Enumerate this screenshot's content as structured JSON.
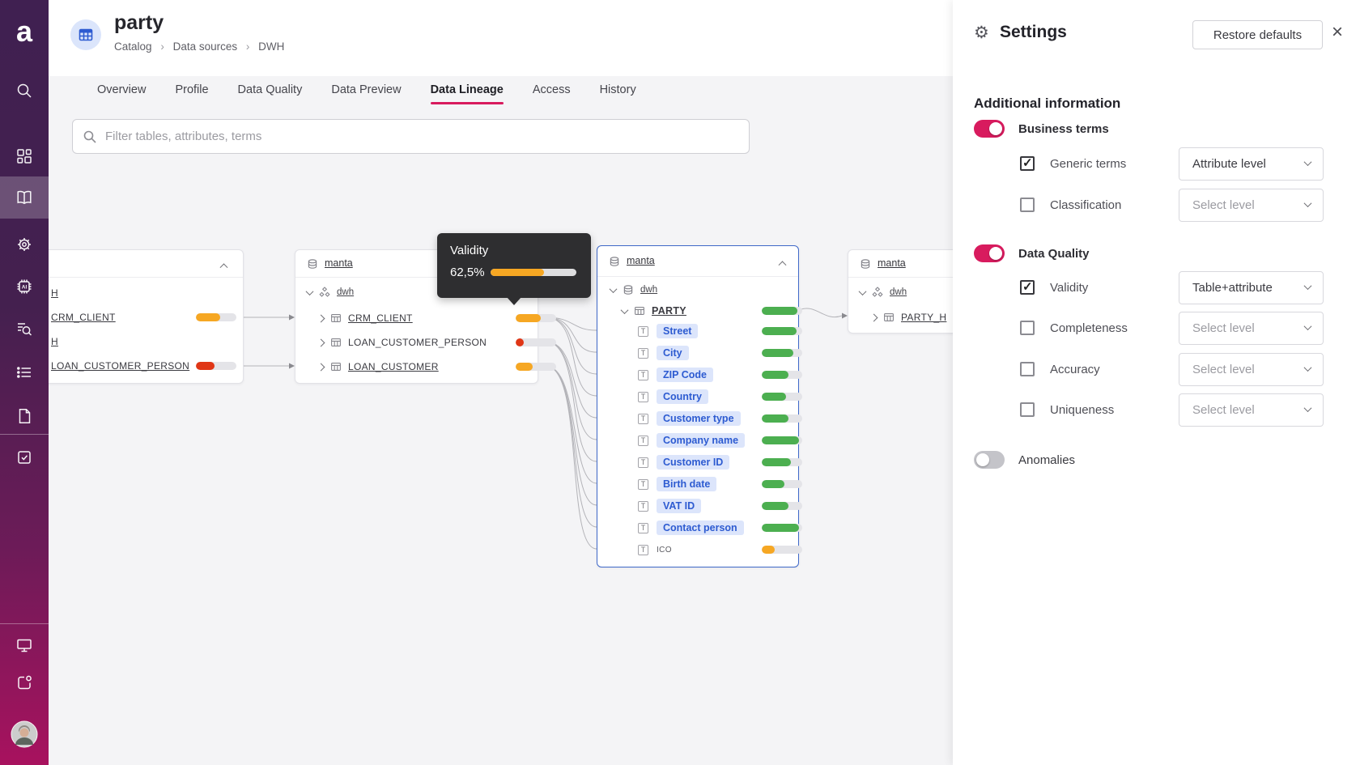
{
  "colors": {
    "pink": "#d81b5e",
    "blue": "#2d5bd1",
    "green": "#4caf50",
    "orange": "#f6a723",
    "red": "#e03616",
    "track": "#e4e4e8",
    "selected_node_border": "#3f68c8",
    "sidebar_top": "#402051",
    "sidebar_bottom": "#a8125e"
  },
  "icons": {
    "gear": "⚙",
    "close": "×",
    "crumb_sep": "›",
    "attribute_type": "T"
  },
  "sidebar": {
    "items": [
      "search-icon",
      "dashboard-icon",
      "catalog-book-icon",
      "gear-icon",
      "ai-chip-icon",
      "data-discovery-icon",
      "list-icon",
      "document-icon",
      "tasks-icon",
      "desktop-icon",
      "release-icon",
      "user-avatar"
    ],
    "active_item": "catalog-book-icon"
  },
  "header": {
    "title": "party",
    "breadcrumb": {
      "items": [
        "Catalog",
        "Data sources",
        "DWH"
      ]
    }
  },
  "tabs": {
    "items": [
      "Overview",
      "Profile",
      "Data Quality",
      "Data Preview",
      "Data Lineage",
      "Access",
      "History"
    ],
    "active": "Data Lineage"
  },
  "filter": {
    "placeholder": "Filter tables, attributes, terms"
  },
  "lineage": {
    "tooltip": {
      "title": "Validity",
      "value": "62,5%",
      "bar": {
        "pct": 62.5,
        "color": "orange"
      }
    },
    "left_node": {
      "rows": [
        {
          "label": "H"
        },
        {
          "label": "CRM_CLIENT",
          "bar": {
            "pct": 60,
            "color": "orange"
          }
        },
        {
          "label": "H"
        },
        {
          "label": "LOAN_CUSTOMER_PERSON",
          "bar": {
            "pct": 45,
            "color": "red"
          }
        }
      ]
    },
    "middle_node": {
      "source": "manta",
      "schema": "dwh",
      "tables": [
        {
          "label": "CRM_CLIENT",
          "bar": {
            "pct": 62.5,
            "color": "orange"
          }
        },
        {
          "label": "LOAN_CUSTOMER_PERSON",
          "bar": {
            "pct": 20,
            "color": "red"
          }
        },
        {
          "label": "LOAN_CUSTOMER",
          "bar": {
            "pct": 42,
            "color": "orange"
          }
        }
      ]
    },
    "party_node": {
      "source": "manta",
      "schema": "dwh",
      "table": {
        "label": "PARTY",
        "bar": {
          "pct": 88,
          "color": "green"
        }
      },
      "attributes": [
        {
          "label": "Street",
          "term": true,
          "bar": {
            "pct": 85,
            "color": "green"
          }
        },
        {
          "label": "City",
          "term": true,
          "bar": {
            "pct": 78,
            "color": "green"
          }
        },
        {
          "label": "ZIP Code",
          "term": true,
          "bar": {
            "pct": 65,
            "color": "green"
          }
        },
        {
          "label": "Country",
          "term": true,
          "bar": {
            "pct": 60,
            "color": "green"
          }
        },
        {
          "label": "Customer type",
          "term": true,
          "bar": {
            "pct": 66,
            "color": "green"
          }
        },
        {
          "label": "Company name",
          "term": true,
          "bar": {
            "pct": 92,
            "color": "green"
          }
        },
        {
          "label": "Customer ID",
          "term": true,
          "bar": {
            "pct": 72,
            "color": "green"
          }
        },
        {
          "label": "Birth date",
          "term": true,
          "bar": {
            "pct": 55,
            "color": "green"
          }
        },
        {
          "label": "VAT ID",
          "term": true,
          "bar": {
            "pct": 66,
            "color": "green"
          }
        },
        {
          "label": "Contact person",
          "term": true,
          "bar": {
            "pct": 92,
            "color": "green"
          }
        },
        {
          "label": "ICO",
          "term": false,
          "bar": {
            "pct": 32,
            "color": "orange"
          }
        }
      ]
    },
    "right_node": {
      "source": "manta",
      "schema": "dwh",
      "tables": [
        {
          "label": "PARTY_H"
        }
      ]
    }
  },
  "settings": {
    "title": "Settings",
    "restore_label": "Restore defaults",
    "section_heading": "Additional information",
    "groups": [
      {
        "label": "Business terms",
        "enabled": true,
        "items": [
          {
            "label": "Generic terms",
            "checked": true,
            "value": "Attribute level",
            "muted": false
          },
          {
            "label": "Classification",
            "checked": false,
            "value": "Select level",
            "muted": true
          }
        ]
      },
      {
        "label": "Data Quality",
        "enabled": true,
        "items": [
          {
            "label": "Validity",
            "checked": true,
            "value": "Table+attribute",
            "muted": false
          },
          {
            "label": "Completeness",
            "checked": false,
            "value": "Select level",
            "muted": true
          },
          {
            "label": "Accuracy",
            "checked": false,
            "value": "Select level",
            "muted": true
          },
          {
            "label": "Uniqueness",
            "checked": false,
            "value": "Select level",
            "muted": true
          }
        ]
      },
      {
        "label": "Anomalies",
        "enabled": false,
        "items": []
      }
    ]
  }
}
